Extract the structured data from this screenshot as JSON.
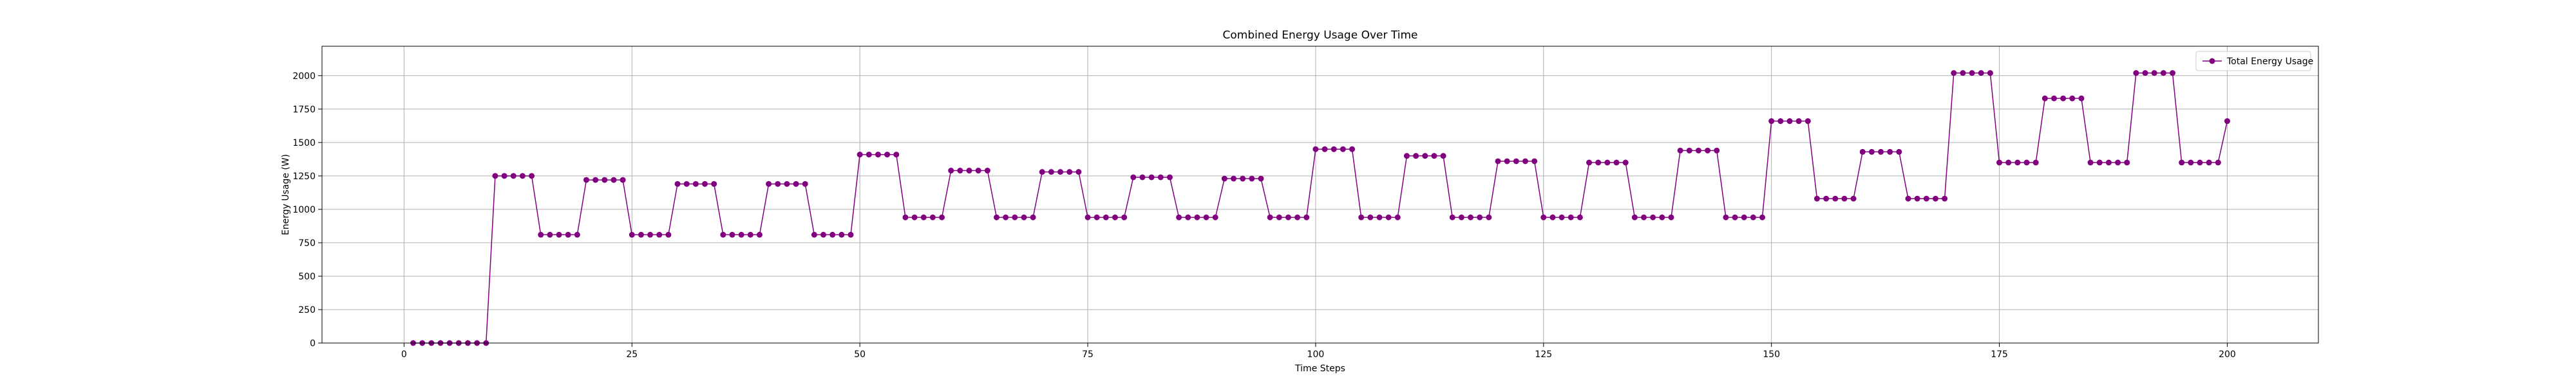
{
  "chart_data": {
    "type": "line",
    "title": "Combined Energy Usage Over Time",
    "xlabel": "Time Steps",
    "ylabel": "Energy Usage (W)",
    "xlim": [
      -9,
      210
    ],
    "ylim": [
      0,
      2220
    ],
    "xticks": [
      0,
      25,
      50,
      75,
      100,
      125,
      150,
      175,
      200
    ],
    "xtick_labels": [
      "0",
      "25",
      "50",
      "75",
      "100",
      "125",
      "150",
      "175",
      "200"
    ],
    "yticks": [
      0,
      250,
      500,
      750,
      1000,
      1250,
      1500,
      1750,
      2000
    ],
    "ytick_labels": [
      "0",
      "250",
      "500",
      "750",
      "1000",
      "1250",
      "1500",
      "1750",
      "2000"
    ],
    "grid": true,
    "legend": "upper right",
    "series": [
      {
        "name": "Total Energy Usage",
        "color": "#800080",
        "marker": "circle",
        "x": [
          1,
          2,
          3,
          4,
          5,
          6,
          7,
          8,
          9,
          10,
          11,
          12,
          13,
          14,
          15,
          16,
          17,
          18,
          19,
          20,
          21,
          22,
          23,
          24,
          25,
          26,
          27,
          28,
          29,
          30,
          31,
          32,
          33,
          34,
          35,
          36,
          37,
          38,
          39,
          40,
          41,
          42,
          43,
          44,
          45,
          46,
          47,
          48,
          49,
          50,
          51,
          52,
          53,
          54,
          55,
          56,
          57,
          58,
          59,
          60,
          61,
          62,
          63,
          64,
          65,
          66,
          67,
          68,
          69,
          70,
          71,
          72,
          73,
          74,
          75,
          76,
          77,
          78,
          79,
          80,
          81,
          82,
          83,
          84,
          85,
          86,
          87,
          88,
          89,
          90,
          91,
          92,
          93,
          94,
          95,
          96,
          97,
          98,
          99,
          100,
          101,
          102,
          103,
          104,
          105,
          106,
          107,
          108,
          109,
          110,
          111,
          112,
          113,
          114,
          115,
          116,
          117,
          118,
          119,
          120,
          121,
          122,
          123,
          124,
          125,
          126,
          127,
          128,
          129,
          130,
          131,
          132,
          133,
          134,
          135,
          136,
          137,
          138,
          139,
          140,
          141,
          142,
          143,
          144,
          145,
          146,
          147,
          148,
          149,
          150,
          151,
          152,
          153,
          154,
          155,
          156,
          157,
          158,
          159,
          160,
          161,
          162,
          163,
          164,
          165,
          166,
          167,
          168,
          169,
          170,
          171,
          172,
          173,
          174,
          175,
          176,
          177,
          178,
          179,
          180,
          181,
          182,
          183,
          184,
          185,
          186,
          187,
          188,
          189,
          190,
          191,
          192,
          193,
          194,
          195,
          196,
          197,
          198,
          199,
          200
        ],
        "values": [
          0,
          0,
          0,
          0,
          0,
          0,
          0,
          0,
          0,
          1250,
          1250,
          1250,
          1250,
          1250,
          810,
          810,
          810,
          810,
          810,
          1220,
          1220,
          1220,
          1220,
          1220,
          810,
          810,
          810,
          810,
          810,
          1190,
          1190,
          1190,
          1190,
          1190,
          810,
          810,
          810,
          810,
          810,
          1190,
          1190,
          1190,
          1190,
          1190,
          810,
          810,
          810,
          810,
          810,
          1410,
          1410,
          1410,
          1410,
          1410,
          940,
          940,
          940,
          940,
          940,
          1290,
          1290,
          1290,
          1290,
          1290,
          940,
          940,
          940,
          940,
          940,
          1280,
          1280,
          1280,
          1280,
          1280,
          940,
          940,
          940,
          940,
          940,
          1240,
          1240,
          1240,
          1240,
          1240,
          940,
          940,
          940,
          940,
          940,
          1230,
          1230,
          1230,
          1230,
          1230,
          940,
          940,
          940,
          940,
          940,
          1450,
          1450,
          1450,
          1450,
          1450,
          940,
          940,
          940,
          940,
          940,
          1400,
          1400,
          1400,
          1400,
          1400,
          940,
          940,
          940,
          940,
          940,
          1360,
          1360,
          1360,
          1360,
          1360,
          940,
          940,
          940,
          940,
          940,
          1350,
          1350,
          1350,
          1350,
          1350,
          940,
          940,
          940,
          940,
          940,
          1440,
          1440,
          1440,
          1440,
          1440,
          940,
          940,
          940,
          940,
          940,
          1660,
          1660,
          1660,
          1660,
          1660,
          1080,
          1080,
          1080,
          1080,
          1080,
          1430,
          1430,
          1430,
          1430,
          1430,
          1080,
          1080,
          1080,
          1080,
          1080,
          2020,
          2020,
          2020,
          2020,
          2020,
          1350,
          1350,
          1350,
          1350,
          1350,
          1830,
          1830,
          1830,
          1830,
          1830,
          1350,
          1350,
          1350,
          1350,
          1350,
          2020,
          2020,
          2020,
          2020,
          2020,
          1350,
          1350,
          1350,
          1350,
          1350,
          1660
        ]
      }
    ]
  }
}
